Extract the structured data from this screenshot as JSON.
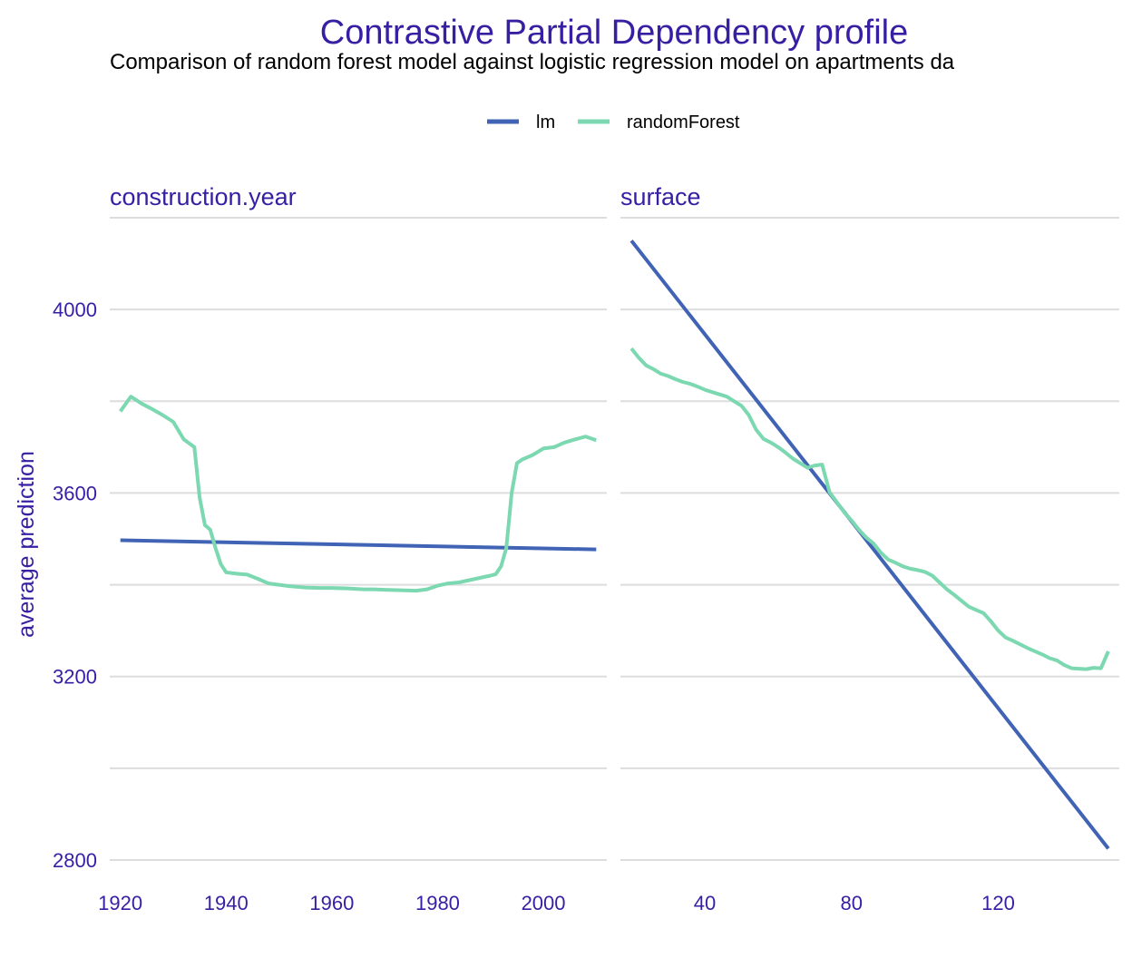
{
  "colors": {
    "title": "#371EA3",
    "text": "#000000",
    "grid": "#DDDDDF",
    "lm": "#4063B5",
    "randomForest": "#7BD8B0"
  },
  "chart_data": {
    "type": "line",
    "title": "Contrastive Partial Dependency profile",
    "subtitle": "Comparison of random forest model against logistic regression model on apartments da",
    "ylabel": "average prediction",
    "ylim": [
      2800,
      4200
    ],
    "yticks": [
      2800,
      3200,
      3600,
      4000
    ],
    "grid": true,
    "legend": {
      "position": "top",
      "entries": [
        {
          "name": "lm",
          "color": "#4063B5"
        },
        {
          "name": "randomForest",
          "color": "#7BD8B0"
        }
      ]
    },
    "panels": [
      {
        "name": "construction.year",
        "xlim": [
          1918,
          2012
        ],
        "xticks": [
          1920,
          1940,
          1960,
          1980,
          2000
        ],
        "series": [
          {
            "name": "lm",
            "x": [
              1920,
              2010
            ],
            "y": [
              3497,
              3477
            ]
          },
          {
            "name": "randomForest",
            "x": [
              1920,
              1922,
              1924,
              1926,
              1928,
              1930,
              1932,
              1934,
              1935,
              1936,
              1937,
              1938,
              1939,
              1940,
              1942,
              1944,
              1946,
              1948,
              1950,
              1952,
              1955,
              1958,
              1960,
              1963,
              1966,
              1968,
              1970,
              1973,
              1976,
              1978,
              1980,
              1982,
              1984,
              1986,
              1988,
              1990,
              1991,
              1992,
              1993,
              1994,
              1995,
              1996,
              1998,
              2000,
              2002,
              2004,
              2006,
              2008,
              2010
            ],
            "y": [
              3778,
              3810,
              3795,
              3783,
              3770,
              3755,
              3717,
              3700,
              3590,
              3530,
              3520,
              3480,
              3445,
              3427,
              3424,
              3422,
              3413,
              3403,
              3400,
              3397,
              3394,
              3393,
              3393,
              3392,
              3390,
              3390,
              3389,
              3388,
              3387,
              3390,
              3398,
              3403,
              3405,
              3410,
              3415,
              3420,
              3423,
              3440,
              3480,
              3600,
              3665,
              3673,
              3683,
              3697,
              3700,
              3710,
              3717,
              3723,
              3715
            ]
          }
        ]
      },
      {
        "name": "surface",
        "xlim": [
          17,
          153
        ],
        "xticks": [
          40,
          80,
          120
        ],
        "series": [
          {
            "name": "lm",
            "x": [
              20,
              150
            ],
            "y": [
              4150,
              2825
            ]
          },
          {
            "name": "randomForest",
            "x": [
              20,
              22,
              24,
              26,
              28,
              30,
              32,
              34,
              36,
              38,
              40,
              42,
              44,
              46,
              48,
              50,
              52,
              54,
              56,
              58,
              60,
              62,
              64,
              66,
              68,
              70,
              72,
              74,
              76,
              78,
              80,
              82,
              84,
              86,
              88,
              90,
              92,
              94,
              96,
              98,
              100,
              102,
              104,
              106,
              108,
              110,
              112,
              114,
              116,
              118,
              120,
              122,
              124,
              126,
              128,
              130,
              132,
              134,
              136,
              138,
              140,
              142,
              144,
              146,
              148,
              150
            ],
            "y": [
              3915,
              3895,
              3878,
              3870,
              3860,
              3855,
              3848,
              3842,
              3838,
              3832,
              3825,
              3820,
              3815,
              3810,
              3800,
              3790,
              3770,
              3738,
              3718,
              3710,
              3700,
              3688,
              3675,
              3665,
              3655,
              3660,
              3662,
              3602,
              3580,
              3558,
              3540,
              3520,
              3503,
              3490,
              3470,
              3455,
              3448,
              3440,
              3435,
              3432,
              3428,
              3420,
              3405,
              3390,
              3378,
              3365,
              3352,
              3345,
              3338,
              3320,
              3300,
              3285,
              3278,
              3270,
              3262,
              3255,
              3248,
              3240,
              3235,
              3225,
              3218,
              3217,
              3216,
              3219,
              3218,
              3255
            ]
          }
        ]
      }
    ]
  }
}
